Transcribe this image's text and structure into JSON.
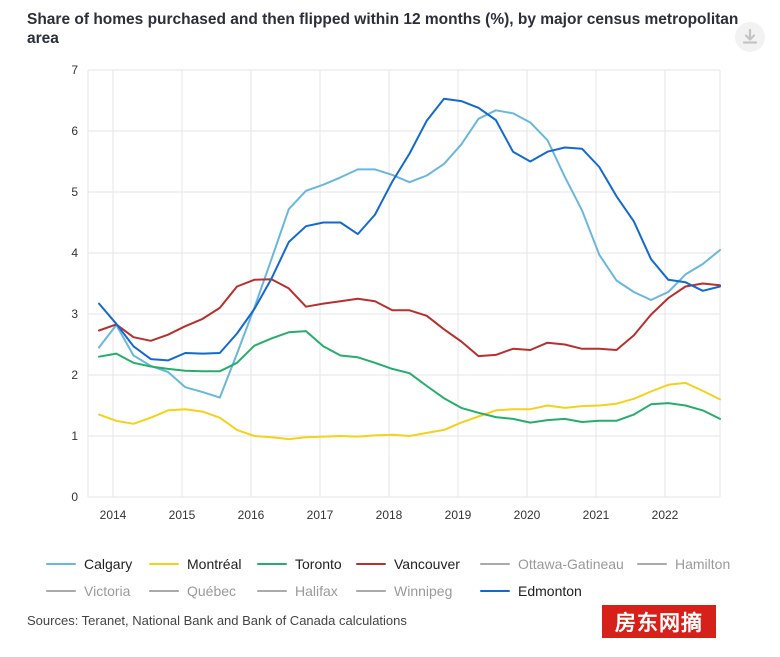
{
  "title": "Share of homes purchased and then flipped within 12 months (%), by major census metropolitan area",
  "source": "Sources: Teranet, National Bank and Bank of Canada calculations",
  "watermark": "房东网摘",
  "download_icon": "download-icon",
  "colors": {
    "Calgary": "#6ab7dc",
    "Montréal": "#f4d21c",
    "Toronto": "#27ad6b",
    "Vancouver": "#b6302d",
    "Edmonton": "#1469cf",
    "inactive": "#aaaaaa",
    "grid": "#e6e6e6"
  },
  "legend": [
    {
      "name": "Calgary",
      "active": true
    },
    {
      "name": "Montréal",
      "active": true
    },
    {
      "name": "Toronto",
      "active": true
    },
    {
      "name": "Vancouver",
      "active": true
    },
    {
      "name": "Ottawa-Gatineau",
      "active": false
    },
    {
      "name": "Hamilton",
      "active": false
    },
    {
      "name": "Victoria",
      "active": false
    },
    {
      "name": "Québec",
      "active": false
    },
    {
      "name": "Halifax",
      "active": false
    },
    {
      "name": "Winnipeg",
      "active": false
    },
    {
      "name": "Edmonton",
      "active": true
    }
  ],
  "chart_data": {
    "type": "line",
    "title": "Share of homes purchased and then flipped within 12 months (%), by major census metropolitan area",
    "xlabel": "",
    "ylabel": "",
    "ylim": [
      0,
      7
    ],
    "yticks": [
      "0",
      "1",
      "2",
      "3",
      "4",
      "5",
      "6",
      "7"
    ],
    "xticks": [
      "2014",
      "2015",
      "2016",
      "2017",
      "2018",
      "2019",
      "2020",
      "2021",
      "2022"
    ],
    "x": [
      "2013Q4",
      "2014Q1",
      "2014Q2",
      "2014Q3",
      "2014Q4",
      "2015Q1",
      "2015Q2",
      "2015Q3",
      "2015Q4",
      "2016Q1",
      "2016Q2",
      "2016Q3",
      "2016Q4",
      "2017Q1",
      "2017Q2",
      "2017Q3",
      "2017Q4",
      "2018Q1",
      "2018Q2",
      "2018Q3",
      "2018Q4",
      "2019Q1",
      "2019Q2",
      "2019Q3",
      "2019Q4",
      "2020Q1",
      "2020Q2",
      "2020Q3",
      "2020Q4",
      "2021Q1",
      "2021Q2",
      "2021Q3",
      "2021Q4",
      "2022Q1",
      "2022Q2",
      "2022Q3",
      "2022Q4"
    ],
    "grid": true,
    "legend_position": "bottom",
    "series": [
      {
        "name": "Calgary",
        "values": [
          2.45,
          2.82,
          2.32,
          2.15,
          2.05,
          1.8,
          1.72,
          1.63,
          2.35,
          3.1,
          3.9,
          4.72,
          5.02,
          5.12,
          5.24,
          5.37,
          5.37,
          5.28,
          5.16,
          5.27,
          5.46,
          5.78,
          6.2,
          6.34,
          6.29,
          6.14,
          5.85,
          5.25,
          4.7,
          3.97,
          3.55,
          3.36,
          3.23,
          3.36,
          3.65,
          3.82,
          4.05
        ]
      },
      {
        "name": "Montréal",
        "values": [
          1.35,
          1.25,
          1.2,
          1.3,
          1.42,
          1.44,
          1.4,
          1.3,
          1.1,
          1.0,
          0.98,
          0.95,
          0.98,
          0.99,
          1.0,
          0.99,
          1.01,
          1.02,
          1.0,
          1.05,
          1.1,
          1.22,
          1.32,
          1.42,
          1.44,
          1.44,
          1.5,
          1.46,
          1.49,
          1.5,
          1.53,
          1.61,
          1.73,
          1.84,
          1.87,
          1.74,
          1.6
        ]
      },
      {
        "name": "Toronto",
        "values": [
          2.3,
          2.35,
          2.2,
          2.14,
          2.1,
          2.07,
          2.06,
          2.06,
          2.2,
          2.48,
          2.6,
          2.7,
          2.72,
          2.47,
          2.32,
          2.29,
          2.2,
          2.1,
          2.03,
          1.82,
          1.62,
          1.46,
          1.38,
          1.31,
          1.28,
          1.22,
          1.26,
          1.28,
          1.23,
          1.25,
          1.25,
          1.35,
          1.52,
          1.54,
          1.5,
          1.42,
          1.28
        ]
      },
      {
        "name": "Vancouver",
        "values": [
          2.73,
          2.83,
          2.62,
          2.56,
          2.66,
          2.8,
          2.92,
          3.1,
          3.45,
          3.56,
          3.57,
          3.42,
          3.12,
          3.17,
          3.21,
          3.25,
          3.21,
          3.06,
          3.06,
          2.97,
          2.75,
          2.55,
          2.31,
          2.33,
          2.43,
          2.41,
          2.53,
          2.5,
          2.43,
          2.43,
          2.41,
          2.65,
          2.99,
          3.26,
          3.45,
          3.5,
          3.47
        ]
      },
      {
        "name": "Edmonton",
        "values": [
          3.17,
          2.84,
          2.47,
          2.26,
          2.24,
          2.36,
          2.35,
          2.36,
          2.68,
          3.08,
          3.58,
          4.18,
          4.44,
          4.5,
          4.5,
          4.31,
          4.63,
          5.17,
          5.63,
          6.17,
          6.53,
          6.49,
          6.38,
          6.18,
          5.66,
          5.5,
          5.66,
          5.73,
          5.71,
          5.41,
          4.93,
          4.52,
          3.9,
          3.56,
          3.52,
          3.38,
          3.45
        ]
      }
    ]
  }
}
